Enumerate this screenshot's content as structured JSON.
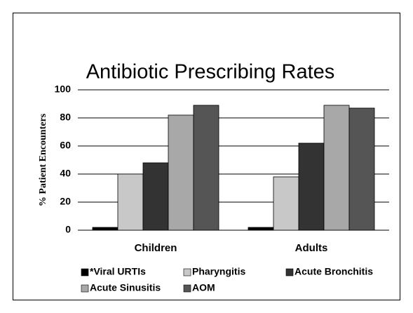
{
  "chart_data": {
    "type": "bar",
    "title": "Antibiotic Prescribing Rates",
    "y_label": "% Patient Encounters",
    "categories": [
      "Children",
      "Adults"
    ],
    "series": [
      {
        "name": "*Viral URTIs",
        "color": "#000000",
        "values": [
          2,
          2
        ]
      },
      {
        "name": "Pharyngitis",
        "color": "#c8c8c8",
        "values": [
          40,
          38
        ]
      },
      {
        "name": "Acute Bronchitis",
        "color": "#333333",
        "values": [
          48,
          62
        ]
      },
      {
        "name": "Acute Sinusitis",
        "color": "#a8a8a8",
        "values": [
          82,
          89
        ]
      },
      {
        "name": "AOM",
        "color": "#555555",
        "values": [
          89,
          87
        ]
      }
    ],
    "ylim": [
      0,
      100
    ],
    "yticks": [
      0,
      20,
      40,
      60,
      80,
      100
    ],
    "grid": true,
    "legend": "bottom"
  }
}
